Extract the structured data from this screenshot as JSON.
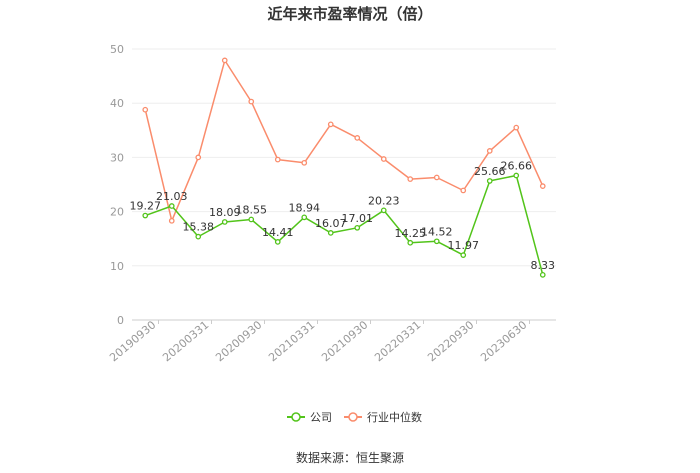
{
  "chart_data": {
    "type": "line",
    "title": "近年来市盈率情况（倍）",
    "source": "数据来源：恒生聚源",
    "ylim": [
      0,
      50
    ],
    "y_ticks": [
      "0",
      "10",
      "20",
      "30",
      "40",
      "50"
    ],
    "x_tick_labels": [
      "20190930",
      "20200331",
      "20200930",
      "20210331",
      "20210930",
      "20220331",
      "20220930",
      "20230630"
    ],
    "grid": true,
    "legend_position": "bottom",
    "series": [
      {
        "name": "公司",
        "color": "#52c41a",
        "values": [
          19.27,
          21.03,
          15.38,
          18.09,
          18.55,
          14.41,
          18.94,
          16.07,
          17.01,
          20.23,
          14.25,
          14.52,
          11.97,
          25.66,
          26.66,
          8.33
        ],
        "labels": [
          "19.27",
          "21.03",
          "15.38",
          "18.09",
          "18.55",
          "14.41",
          "18.94",
          "16.07",
          "17.01",
          "20.23",
          "14.25",
          "14.52",
          "11.97",
          "25.66",
          "26.66",
          "8.33"
        ]
      },
      {
        "name": "行业中位数",
        "color": "#fa8c6c",
        "values": [
          38.8,
          18.3,
          30.0,
          47.9,
          40.3,
          29.6,
          29.0,
          36.1,
          33.6,
          29.7,
          26.0,
          26.3,
          23.9,
          31.2,
          35.5,
          24.7
        ]
      }
    ]
  }
}
